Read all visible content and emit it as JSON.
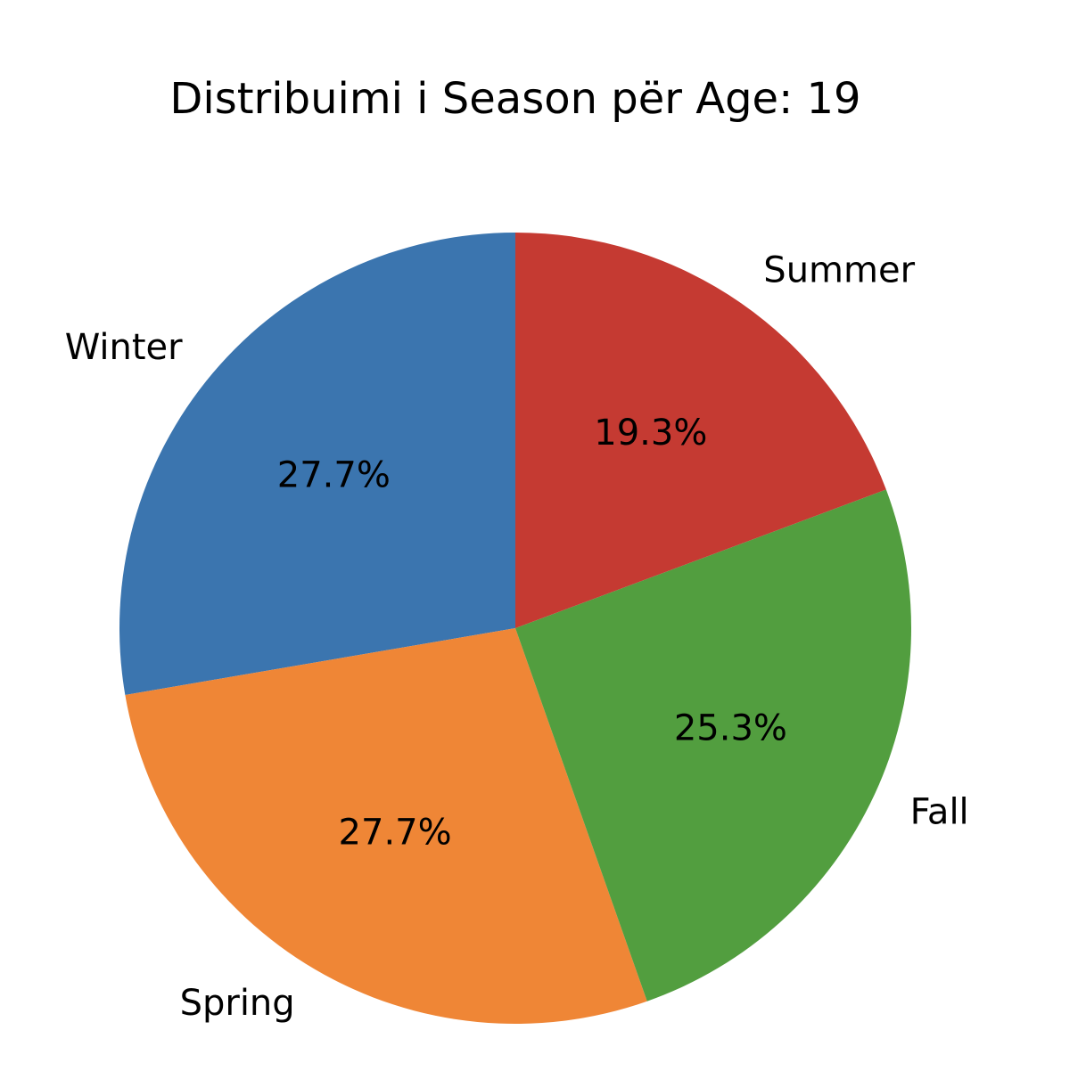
{
  "chart_data": {
    "type": "pie",
    "title": "Distribuimi i Season për Age: 19",
    "start_angle_deg": 90,
    "direction": "counterclockwise",
    "slices": [
      {
        "label": "Winter",
        "value": 27.7,
        "pct_label": "27.7%",
        "color": "#3b75af"
      },
      {
        "label": "Spring",
        "value": 27.7,
        "pct_label": "27.7%",
        "color": "#ef8636"
      },
      {
        "label": "Fall",
        "value": 25.3,
        "pct_label": "25.3%",
        "color": "#529e3f"
      },
      {
        "label": "Summer",
        "value": 19.3,
        "pct_label": "19.3%",
        "color": "#c53a32"
      }
    ]
  }
}
